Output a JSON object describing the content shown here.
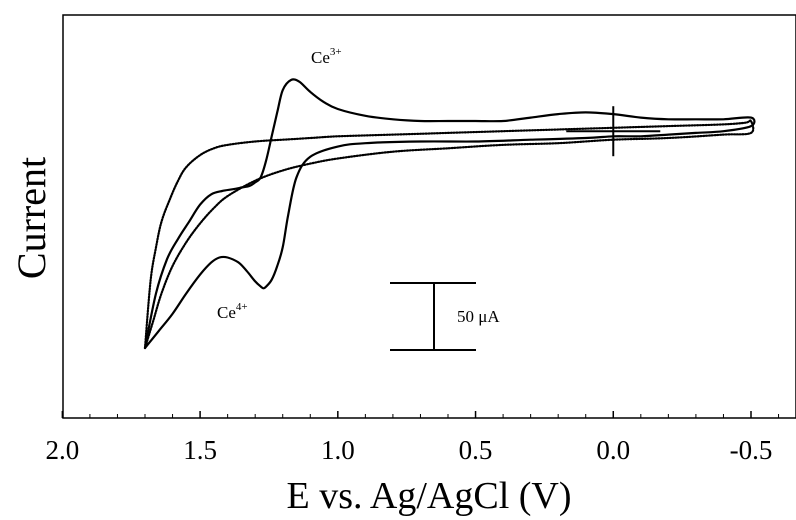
{
  "chart_data": {
    "type": "line",
    "title": "",
    "xlabel": "E vs. Ag/AgCl (V)",
    "ylabel": "Current",
    "x_axis_reversed": true,
    "xlim": [
      2.0,
      -0.6
    ],
    "ylim": [
      -155,
      80
    ],
    "x_ticks": [
      2.0,
      1.5,
      1.0,
      0.5,
      0.0,
      -0.5
    ],
    "x_tick_labels": [
      "2.0",
      "1.5",
      "1.0",
      "0.5",
      "0.0",
      "-0.5"
    ],
    "grid": false,
    "legend": "none",
    "series": [
      {
        "style": "solid",
        "color": "#000000",
        "x": [
          1.7,
          1.66,
          1.62,
          1.58,
          1.54,
          1.5,
          1.46,
          1.42,
          1.38,
          1.35,
          1.32,
          1.3,
          1.28,
          1.26,
          1.24,
          1.22,
          1.2,
          1.17,
          1.14,
          1.1,
          1.05,
          1.0,
          0.9,
          0.8,
          0.7,
          0.6,
          0.5,
          0.4,
          0.3,
          0.2,
          0.1,
          0.0,
          -0.1,
          -0.2,
          -0.3,
          -0.4,
          -0.5,
          -0.5,
          -0.4,
          -0.3,
          -0.2,
          -0.1,
          0.0,
          0.1,
          0.3,
          0.5,
          0.7,
          0.9,
          1.0,
          1.1,
          1.15,
          1.18,
          1.2,
          1.22,
          1.24,
          1.26,
          1.27,
          1.28,
          1.3,
          1.33,
          1.36,
          1.4,
          1.43,
          1.46,
          1.5,
          1.55,
          1.6,
          1.65,
          1.68,
          1.7
        ],
        "y": [
          -124,
          -92,
          -72,
          -60,
          -50,
          -40,
          -34,
          -32,
          -31,
          -30,
          -29,
          -27,
          -24,
          -14,
          0,
          14,
          27,
          33,
          32,
          26,
          20,
          16,
          12,
          10,
          9,
          9,
          9,
          9,
          11,
          13,
          14,
          13,
          11,
          10,
          10,
          10,
          11,
          6,
          3,
          2,
          1,
          0,
          0,
          -1,
          -2,
          -3,
          -3,
          -4,
          -6,
          -12,
          -24,
          -46,
          -65,
          -76,
          -84,
          -88,
          -89,
          -88,
          -85,
          -79,
          -74,
          -71,
          -71,
          -74,
          -81,
          -92,
          -104,
          -114,
          -120,
          -124
        ]
      },
      {
        "style": "dotted",
        "color": "#000000",
        "x": [
          1.7,
          1.68,
          1.66,
          1.64,
          1.61,
          1.58,
          1.55,
          1.5,
          1.45,
          1.4,
          1.3,
          1.2,
          1.1,
          1.0,
          0.8,
          0.6,
          0.4,
          0.2,
          0.0,
          -0.2,
          -0.4,
          -0.48,
          -0.5,
          -0.5,
          -0.4,
          -0.2,
          0.0,
          0.2,
          0.4,
          0.6,
          0.8,
          1.0,
          1.1,
          1.2,
          1.3,
          1.4,
          1.45,
          1.5,
          1.55,
          1.6,
          1.64,
          1.67,
          1.7
        ],
        "y": [
          -124,
          -85,
          -65,
          -50,
          -37,
          -26,
          -18,
          -11,
          -7,
          -5,
          -3,
          -2,
          -1,
          0,
          1,
          2,
          3,
          4,
          5,
          6,
          7,
          8,
          9,
          2,
          1,
          -1,
          -2,
          -4,
          -5,
          -7,
          -9,
          -13,
          -16,
          -20,
          -26,
          -35,
          -42,
          -51,
          -62,
          -76,
          -92,
          -108,
          -124
        ]
      }
    ],
    "annotations": [
      {
        "base": "Ce",
        "sup": "3+",
        "near": "anodic peak"
      },
      {
        "base": "Ce",
        "sup": "4+",
        "near": "cathodic peak"
      }
    ],
    "scale_bar": {
      "label": "50 μA",
      "value": 50
    }
  }
}
